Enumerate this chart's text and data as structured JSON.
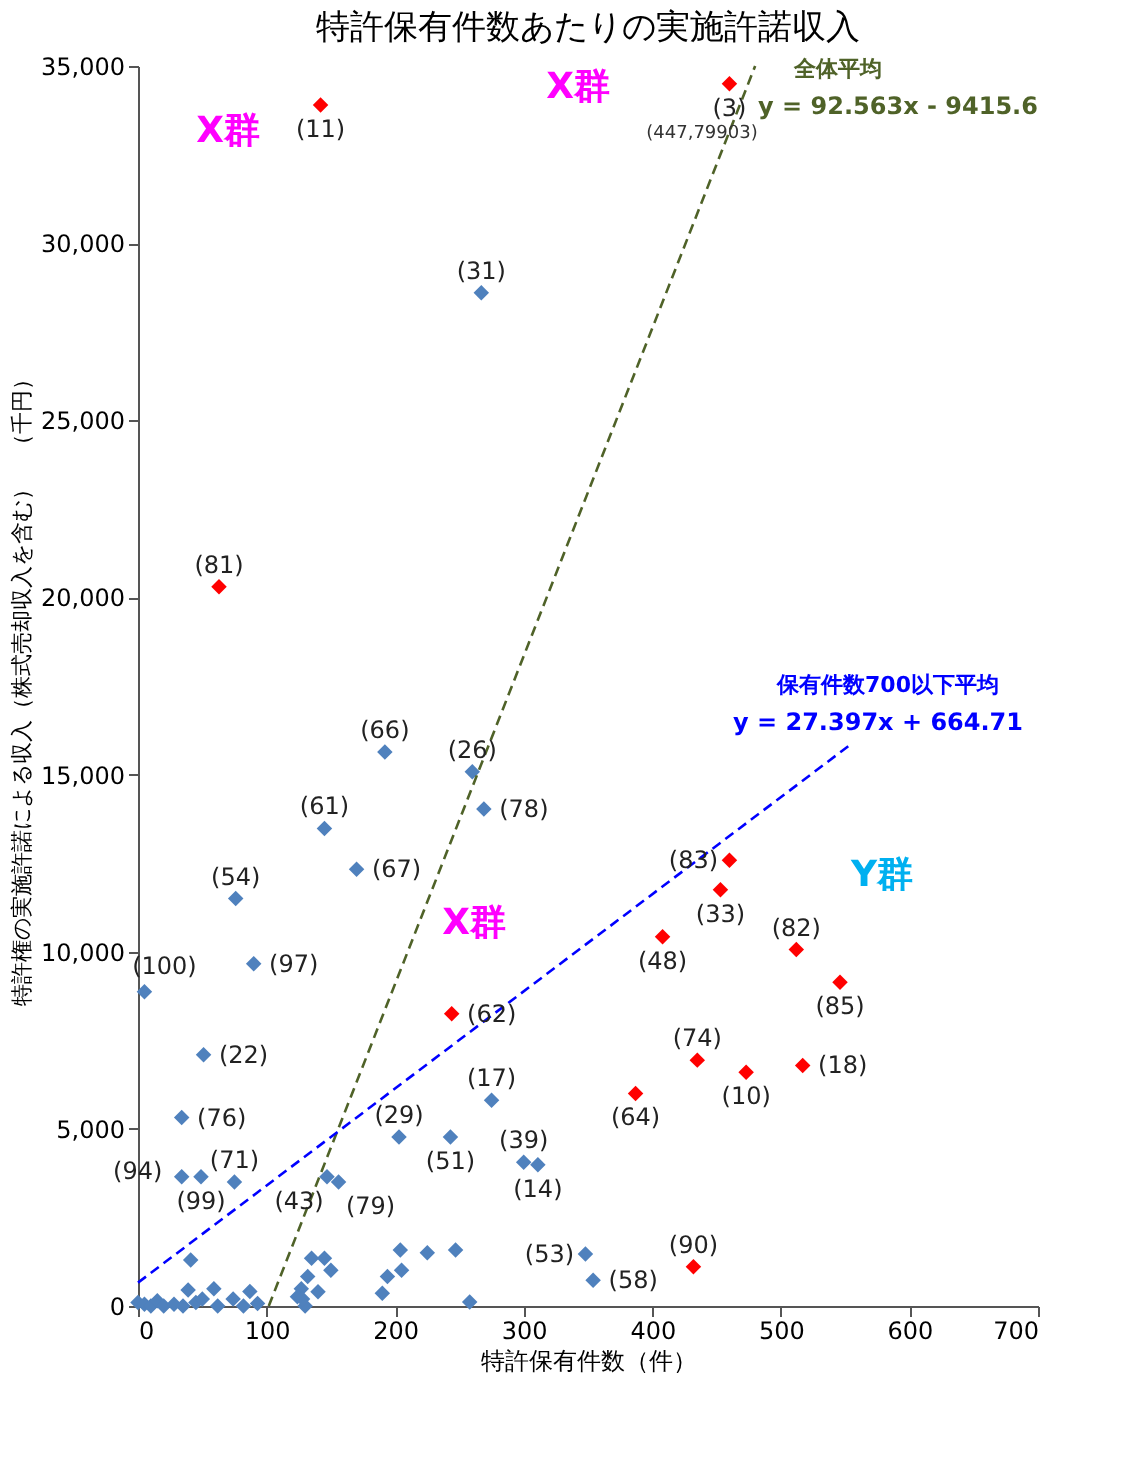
{
  "chart_data": {
    "type": "scatter",
    "title": "特許保有件数あたりの実施許諾収入",
    "xlabel": "特許保有件数（件）",
    "ylabel": "特許権の実施許諾による収入（株式売却収入を含む）　（千円）",
    "xlim": [
      0,
      700
    ],
    "xticks": [
      0,
      100,
      200,
      300,
      400,
      500,
      600,
      700
    ],
    "ylim": [
      0,
      35000
    ],
    "yticks": [
      0,
      {
        "value": 5000,
        "label": "5,000"
      },
      {
        "value": 10000,
        "label": "10,000"
      },
      {
        "value": 15000,
        "label": "15,000"
      },
      {
        "value": 20000,
        "label": "20,000"
      },
      {
        "value": 25000,
        "label": "25,000"
      },
      {
        "value": 30000,
        "label": "30,000"
      },
      {
        "value": 35000,
        "label": "35,000"
      }
    ],
    "grid": false,
    "marker": "diamond",
    "series": [
      {
        "color": "#4f81bd",
        "x": [
          267,
          192,
          260,
          269,
          145,
          170,
          76,
          90,
          5,
          51,
          275,
          34,
          203,
          243,
          34,
          49,
          75,
          147,
          156,
          300,
          311,
          348,
          354,
          41,
          135,
          145,
          150,
          132,
          127,
          124,
          204,
          225,
          247,
          194,
          205,
          190,
          258,
          39,
          59,
          74,
          87,
          93,
          0,
          5,
          10,
          15,
          20,
          28,
          35,
          45,
          50,
          62,
          82,
          130,
          128,
          140
        ],
        "values": [
          28600,
          15640,
          15080,
          14030,
          13480,
          12330,
          11500,
          9660,
          8870,
          7090,
          5810,
          5320,
          4770,
          4770,
          3650,
          3650,
          3500,
          3650,
          3500,
          4060,
          3990,
          1470,
          730,
          1300,
          1350,
          1350,
          1010,
          830,
          490,
          260,
          1580,
          1500,
          1580,
          830,
          1010,
          360,
          110,
          450,
          490,
          200,
          410,
          70,
          100,
          50,
          0,
          150,
          0,
          50,
          0,
          100,
          200,
          0,
          0,
          0,
          200,
          400
        ]
      },
      {
        "color": "#ff0000",
        "x": [
          142,
          460,
          63,
          244,
          460,
          453,
          408,
          512,
          546,
          435,
          473,
          517,
          387,
          432
        ],
        "values": [
          33900,
          34500,
          20300,
          8250,
          12580,
          11750,
          10420,
          10060,
          9140,
          6940,
          6600,
          6790,
          6000,
          1110
        ]
      },
      {
        "type": "line",
        "color": "#4f6228",
        "line_style": "dashed",
        "marker": "none",
        "x": [
          101.7,
          480
        ],
        "values": [
          0,
          35000
        ]
      },
      {
        "type": "line",
        "color": "#0000ff",
        "line_style": "dashed",
        "marker": "none",
        "x": [
          0,
          555
        ],
        "values": [
          660,
          15870
        ]
      }
    ],
    "annotations": [
      "X群",
      "X群",
      "X群",
      "Y群",
      "(447,79903)",
      "全体平均",
      "y = 92.563x - 9415.6",
      "保有件数700以下平均",
      "y = 27.397x + 664.71",
      {
        "text": "(31)",
        "x": 267,
        "y": 28600
      },
      {
        "text": "(66)",
        "x": 192,
        "y": 15640
      },
      {
        "text": "(26)",
        "x": 260,
        "y": 15080
      },
      {
        "text": "(78)",
        "x": 269,
        "y": 14030
      },
      {
        "text": "(61)",
        "x": 145,
        "y": 13480
      },
      {
        "text": "(67)",
        "x": 170,
        "y": 12330
      },
      {
        "text": "(54)",
        "x": 76,
        "y": 11500
      },
      {
        "text": "(97)",
        "x": 90,
        "y": 9660
      },
      {
        "text": "(100)",
        "x": 5,
        "y": 8870
      },
      {
        "text": "(22)",
        "x": 51,
        "y": 7090
      },
      {
        "text": "(17)",
        "x": 275,
        "y": 5810
      },
      {
        "text": "(76)",
        "x": 34,
        "y": 5320
      },
      {
        "text": "(29)",
        "x": 203,
        "y": 4770
      },
      {
        "text": "(51)",
        "x": 243,
        "y": 4770
      },
      {
        "text": "(94)",
        "x": 34,
        "y": 3650
      },
      {
        "text": "(99)",
        "x": 49,
        "y": 3650
      },
      {
        "text": "(71)",
        "x": 75,
        "y": 3500
      },
      {
        "text": "(43)",
        "x": 147,
        "y": 3650
      },
      {
        "text": "(79)",
        "x": 156,
        "y": 3500
      },
      {
        "text": "(39)",
        "x": 300,
        "y": 4060
      },
      {
        "text": "(14)",
        "x": 311,
        "y": 3990
      },
      {
        "text": "(53)",
        "x": 348,
        "y": 1470
      },
      {
        "text": "(58)",
        "x": 354,
        "y": 730
      },
      {
        "text": "(11)",
        "x": 142,
        "y": 33900
      },
      {
        "text": "(3)",
        "x": 460,
        "y": 34500
      },
      {
        "text": "(81)",
        "x": 63,
        "y": 20300
      },
      {
        "text": "(62)",
        "x": 244,
        "y": 8250
      },
      {
        "text": "(83)",
        "x": 460,
        "y": 12580
      },
      {
        "text": "(33)",
        "x": 453,
        "y": 11750
      },
      {
        "text": "(48)",
        "x": 408,
        "y": 10420
      },
      {
        "text": "(82)",
        "x": 512,
        "y": 10060
      },
      {
        "text": "(85)",
        "x": 546,
        "y": 9140
      },
      {
        "text": "(74)",
        "x": 435,
        "y": 6940
      },
      {
        "text": "(10)",
        "x": 473,
        "y": 6600
      },
      {
        "text": "(18)",
        "x": 517,
        "y": 6790
      },
      {
        "text": "(64)",
        "x": 387,
        "y": 6000
      },
      {
        "text": "(90)",
        "x": 432,
        "y": 1110
      }
    ]
  }
}
